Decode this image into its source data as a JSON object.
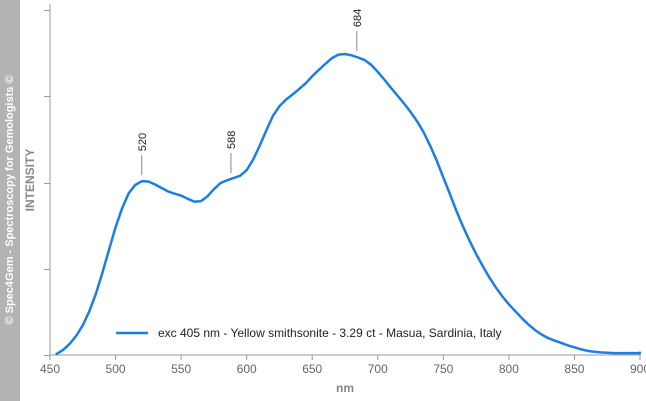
{
  "watermark": "© Spec4Gem - Spectroscopy for Gemologists ©",
  "chart_data": {
    "type": "line",
    "xlabel": "nm",
    "ylabel": "INTENSITY",
    "xlim": [
      450,
      900
    ],
    "ylim": [
      0,
      1
    ],
    "x_ticks": [
      450,
      500,
      550,
      600,
      650,
      700,
      750,
      800,
      850,
      900
    ],
    "grid": false,
    "legend_position": "bottom-center",
    "series": [
      {
        "name": "exc 405 nm - Yellow smithsonite - 3.29 ct - Masua, Sardinia, Italy",
        "color": "#1a7ee6",
        "x": [
          455,
          460,
          465,
          470,
          475,
          480,
          485,
          490,
          495,
          500,
          505,
          510,
          515,
          520,
          525,
          530,
          535,
          540,
          545,
          550,
          555,
          560,
          565,
          570,
          575,
          580,
          585,
          590,
          595,
          600,
          605,
          610,
          615,
          620,
          625,
          630,
          635,
          640,
          645,
          650,
          655,
          660,
          665,
          670,
          675,
          680,
          685,
          690,
          695,
          700,
          705,
          710,
          715,
          720,
          725,
          730,
          735,
          740,
          745,
          750,
          755,
          760,
          765,
          770,
          775,
          780,
          785,
          790,
          795,
          800,
          805,
          810,
          815,
          820,
          825,
          830,
          835,
          840,
          845,
          850,
          855,
          860,
          865,
          870,
          875,
          880,
          885,
          890,
          895,
          900
        ],
        "y": [
          0.003,
          0.016,
          0.035,
          0.06,
          0.093,
          0.137,
          0.192,
          0.258,
          0.33,
          0.401,
          0.46,
          0.507,
          0.533,
          0.545,
          0.544,
          0.535,
          0.524,
          0.513,
          0.506,
          0.5,
          0.49,
          0.481,
          0.482,
          0.497,
          0.52,
          0.539,
          0.548,
          0.555,
          0.562,
          0.58,
          0.613,
          0.657,
          0.704,
          0.75,
          0.78,
          0.801,
          0.817,
          0.834,
          0.852,
          0.874,
          0.894,
          0.913,
          0.931,
          0.942,
          0.944,
          0.94,
          0.933,
          0.925,
          0.91,
          0.888,
          0.864,
          0.838,
          0.814,
          0.789,
          0.762,
          0.733,
          0.698,
          0.656,
          0.609,
          0.557,
          0.505,
          0.452,
          0.403,
          0.358,
          0.317,
          0.279,
          0.244,
          0.212,
          0.184,
          0.159,
          0.137,
          0.115,
          0.095,
          0.078,
          0.064,
          0.053,
          0.045,
          0.038,
          0.03,
          0.024,
          0.018,
          0.013,
          0.01,
          0.008,
          0.007,
          0.006,
          0.006,
          0.006,
          0.006,
          0.006
        ]
      }
    ],
    "annotations": [
      {
        "x": 520,
        "text": "520"
      },
      {
        "x": 588,
        "text": "588"
      },
      {
        "x": 684,
        "text": "684"
      }
    ]
  }
}
